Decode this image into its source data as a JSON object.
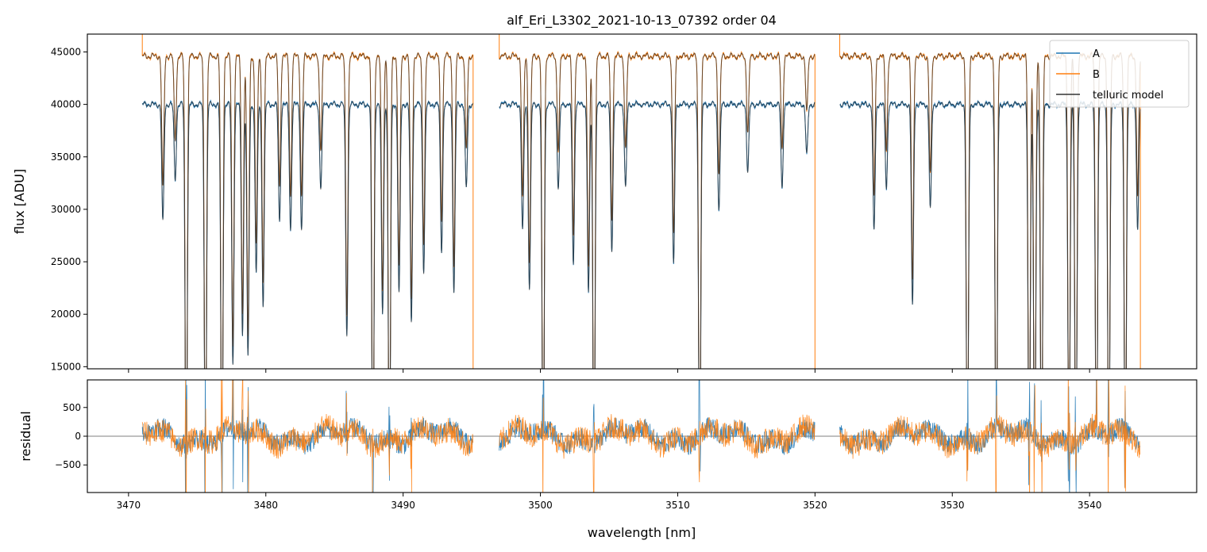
{
  "chart_data": {
    "type": "line",
    "title": "alf_Eri_L3302_2021-10-13_07392  order 04",
    "xlabel": "wavelength [nm]",
    "xlim": [
      3467.0,
      3547.8
    ],
    "x_ticks": [
      3470,
      3480,
      3490,
      3500,
      3510,
      3520,
      3530,
      3540
    ],
    "x_tick_labels": [
      "3470",
      "3480",
      "3490",
      "3500",
      "3510",
      "3520",
      "3530",
      "3540"
    ],
    "segments": [
      [
        3471.0,
        3495.1
      ],
      [
        3497.0,
        3520.0
      ],
      [
        3521.8,
        3543.7
      ]
    ],
    "panels": [
      {
        "id": "flux",
        "ylabel": "flux [ADU]",
        "ylim": [
          14800,
          46700
        ],
        "y_ticks": [
          15000,
          20000,
          25000,
          30000,
          35000,
          40000,
          45000
        ],
        "y_tick_labels": [
          "15000",
          "20000",
          "25000",
          "30000",
          "35000",
          "40000",
          "45000"
        ],
        "continuum": {
          "A": 40000,
          "B": 44600
        },
        "absorption_lines": [
          {
            "x": 3472.5,
            "depth": 0.28
          },
          {
            "x": 3473.4,
            "depth": 0.18
          },
          {
            "x": 3474.2,
            "depth": 0.95
          },
          {
            "x": 3475.6,
            "depth": 0.95
          },
          {
            "x": 3476.8,
            "depth": 0.95
          },
          {
            "x": 3477.6,
            "depth": 0.62
          },
          {
            "x": 3478.3,
            "depth": 0.55
          },
          {
            "x": 3478.7,
            "depth": 0.6
          },
          {
            "x": 3479.3,
            "depth": 0.4
          },
          {
            "x": 3479.8,
            "depth": 0.48
          },
          {
            "x": 3481.0,
            "depth": 0.28
          },
          {
            "x": 3481.8,
            "depth": 0.3
          },
          {
            "x": 3482.6,
            "depth": 0.3
          },
          {
            "x": 3484.0,
            "depth": 0.2
          },
          {
            "x": 3485.9,
            "depth": 0.55
          },
          {
            "x": 3487.8,
            "depth": 0.95
          },
          {
            "x": 3488.5,
            "depth": 0.5
          },
          {
            "x": 3489.0,
            "depth": 0.95
          },
          {
            "x": 3489.7,
            "depth": 0.45
          },
          {
            "x": 3490.6,
            "depth": 0.52
          },
          {
            "x": 3491.5,
            "depth": 0.4
          },
          {
            "x": 3492.8,
            "depth": 0.35
          },
          {
            "x": 3493.7,
            "depth": 0.45
          },
          {
            "x": 3494.6,
            "depth": 0.2
          },
          {
            "x": 3498.7,
            "depth": 0.3
          },
          {
            "x": 3499.2,
            "depth": 0.44
          },
          {
            "x": 3500.2,
            "depth": 0.95
          },
          {
            "x": 3501.3,
            "depth": 0.2
          },
          {
            "x": 3502.4,
            "depth": 0.38
          },
          {
            "x": 3503.5,
            "depth": 0.45
          },
          {
            "x": 3503.9,
            "depth": 0.95
          },
          {
            "x": 3505.2,
            "depth": 0.35
          },
          {
            "x": 3506.2,
            "depth": 0.2
          },
          {
            "x": 3509.7,
            "depth": 0.38
          },
          {
            "x": 3511.6,
            "depth": 0.95
          },
          {
            "x": 3513.0,
            "depth": 0.25
          },
          {
            "x": 3515.1,
            "depth": 0.16
          },
          {
            "x": 3517.6,
            "depth": 0.2
          },
          {
            "x": 3519.4,
            "depth": 0.12
          },
          {
            "x": 3524.3,
            "depth": 0.3
          },
          {
            "x": 3525.2,
            "depth": 0.2
          },
          {
            "x": 3527.1,
            "depth": 0.48
          },
          {
            "x": 3528.4,
            "depth": 0.25
          },
          {
            "x": 3531.1,
            "depth": 0.95
          },
          {
            "x": 3533.2,
            "depth": 0.95
          },
          {
            "x": 3535.6,
            "depth": 0.95
          },
          {
            "x": 3536.0,
            "depth": 0.95
          },
          {
            "x": 3536.5,
            "depth": 0.95
          },
          {
            "x": 3538.5,
            "depth": 0.9
          },
          {
            "x": 3539.0,
            "depth": 0.95
          },
          {
            "x": 3540.5,
            "depth": 0.95
          },
          {
            "x": 3541.4,
            "depth": 0.95
          },
          {
            "x": 3542.6,
            "depth": 0.95
          },
          {
            "x": 3543.5,
            "depth": 0.3
          }
        ]
      },
      {
        "id": "residual",
        "ylabel": "residual",
        "ylim": [
          -980,
          980
        ],
        "y_ticks": [
          -500,
          0,
          500
        ],
        "y_tick_labels": [
          "−500",
          "0",
          "500"
        ],
        "zero_line": 0,
        "noise_level": 180
      }
    ],
    "series": [
      {
        "name": "A",
        "color": "#1f77b4"
      },
      {
        "name": "B",
        "color": "#ff7f0e"
      },
      {
        "name": "telluric model",
        "color": "#333333"
      }
    ],
    "legend": {
      "placement": "top-right"
    },
    "grid": false
  }
}
